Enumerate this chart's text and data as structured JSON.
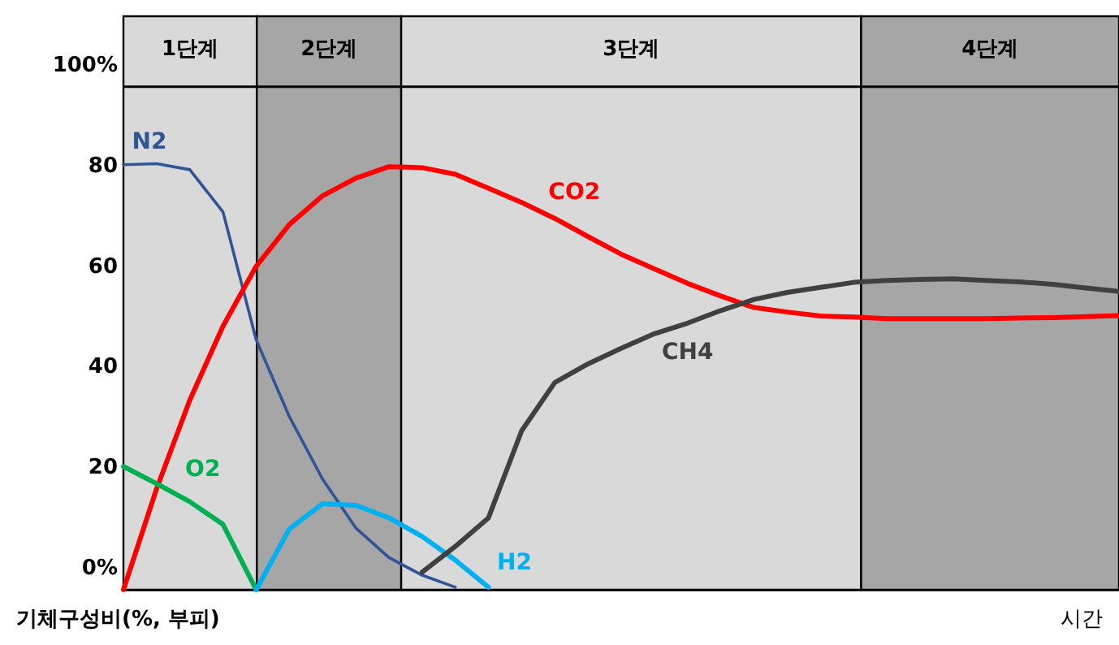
{
  "chart_data": {
    "type": "line",
    "xlabel": "시간",
    "ylabel": "기체구성비(%, 부피)",
    "ylim": [
      -4.5,
      109.5
    ],
    "yticks": [
      {
        "value": 0,
        "label": "0%"
      },
      20,
      40,
      60,
      80,
      {
        "value": 100,
        "label": "100%"
      }
    ],
    "tick_labels": "y",
    "categories": [
      null,
      null,
      null,
      null,
      null,
      null,
      null,
      null,
      null,
      null,
      null,
      null,
      null,
      null,
      null,
      null,
      null,
      null,
      null,
      null,
      null,
      null,
      null,
      null,
      null,
      null,
      null,
      null,
      null,
      null,
      null
    ],
    "annotations": [
      "1단계",
      "2단계",
      "3단계",
      "4단계"
    ],
    "ref_lines": [
      {
        "axis": "y",
        "value": 95.5,
        "color": "#000000"
      }
    ],
    "series": [
      {
        "name": "N2",
        "color": "#2f5597",
        "values": [
          80,
          80.2,
          79,
          70.6,
          45.2,
          29.9,
          17.5,
          7.8,
          1.9,
          -1.6,
          -4.0,
          null,
          null,
          null,
          null,
          null,
          null,
          null,
          null,
          null,
          null,
          null,
          null,
          null,
          null,
          null,
          null,
          null,
          null,
          null,
          null
        ]
      },
      {
        "name": "CO2",
        "color": "#ff0000",
        "values": [
          -4.5,
          15.6,
          33.2,
          47.9,
          59.8,
          68.1,
          73.8,
          77.3,
          79.6,
          79.4,
          78.1,
          75.3,
          72.5,
          69.3,
          65.7,
          62.2,
          59.3,
          56.4,
          53.9,
          51.6,
          50.7,
          49.9,
          49.7,
          49.4,
          49.4,
          49.4,
          49.4,
          49.5,
          49.6,
          49.8,
          50
        ]
      },
      {
        "name": "O2",
        "color": "#00b050",
        "values": [
          20,
          16.6,
          13,
          8.5,
          -4.5,
          null,
          null,
          null,
          null,
          null,
          null,
          null,
          null,
          null,
          null,
          null,
          null,
          null,
          null,
          null,
          null,
          null,
          null,
          null,
          null,
          null,
          null,
          null,
          null,
          null,
          null
        ]
      },
      {
        "name": "H2",
        "color": "#00b0f0",
        "values": [
          null,
          null,
          null,
          null,
          -4.5,
          7.6,
          12.6,
          12.3,
          9.8,
          6.1,
          1.4,
          -4,
          null,
          null,
          null,
          null,
          null,
          null,
          null,
          null,
          null,
          null,
          null,
          null,
          null,
          null,
          null,
          null,
          null,
          null,
          null
        ]
      },
      {
        "name": "CH4",
        "color": "#404040",
        "values": [
          null,
          null,
          null,
          null,
          null,
          null,
          null,
          null,
          null,
          -1,
          4.1,
          9.8,
          27.1,
          36.7,
          40.4,
          43.5,
          46.4,
          48.5,
          51,
          53.2,
          54.6,
          55.6,
          56.6,
          57,
          57.2,
          57.3,
          57,
          56.7,
          56.2,
          55.5,
          54.8
        ]
      }
    ]
  }
}
